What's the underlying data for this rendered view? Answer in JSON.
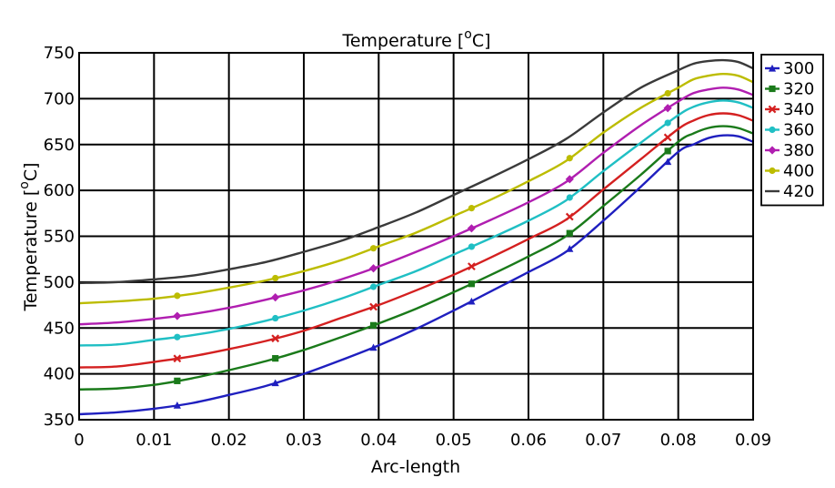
{
  "chart_data": {
    "type": "line",
    "title_main": "Temperature [",
    "title_sup": "o",
    "title_end": "C]",
    "xlabel": "Arc-length",
    "ylabel_main": "Temperature [",
    "ylabel_sup": "o",
    "ylabel_end": "C]",
    "xlim": [
      0,
      0.09
    ],
    "ylim": [
      350,
      750
    ],
    "grid": true,
    "legend_position": "right",
    "x_ticks": [
      "0",
      "0.01",
      "0.02",
      "0.03",
      "0.04",
      "0.05",
      "0.06",
      "0.07",
      "0.08",
      "0.09"
    ],
    "y_ticks": [
      "350",
      "400",
      "450",
      "500",
      "550",
      "600",
      "650",
      "700",
      "750"
    ],
    "marker_x": [
      0.0131,
      0.0262,
      0.0393,
      0.0524,
      0.0655,
      0.0786
    ],
    "x": [
      0,
      0.005,
      0.01,
      0.015,
      0.02,
      0.025,
      0.03,
      0.035,
      0.04,
      0.045,
      0.05,
      0.055,
      0.06,
      0.065,
      0.07,
      0.075,
      0.08,
      0.082,
      0.084,
      0.086,
      0.088,
      0.09
    ],
    "series": [
      {
        "name": "300",
        "color": "#1f1fbf",
        "marker": "triangle",
        "values": [
          356,
          358,
          362,
          368,
          377,
          387,
          400,
          415,
          431,
          449,
          469,
          490,
          511,
          533,
          567,
          604,
          642,
          650,
          657,
          660,
          659,
          653
        ]
      },
      {
        "name": "320",
        "color": "#1a7a1a",
        "marker": "square",
        "values": [
          383,
          384,
          388,
          395,
          404,
          414,
          426,
          440,
          455,
          471,
          489,
          508,
          528,
          550,
          583,
          617,
          653,
          662,
          668,
          670,
          668,
          662
        ]
      },
      {
        "name": "340",
        "color": "#d42020",
        "marker": "cross",
        "values": [
          407,
          408,
          413,
          419,
          427,
          436,
          447,
          461,
          475,
          491,
          508,
          527,
          547,
          568,
          601,
          634,
          667,
          676,
          682,
          684,
          682,
          676
        ]
      },
      {
        "name": "360",
        "color": "#20bfc4",
        "marker": "circle",
        "values": [
          431,
          432,
          437,
          442,
          449,
          458,
          469,
          482,
          497,
          512,
          530,
          548,
          567,
          589,
          621,
          652,
          682,
          691,
          696,
          698,
          696,
          690
        ]
      },
      {
        "name": "380",
        "color": "#b01eb0",
        "marker": "diamond",
        "values": [
          454,
          456,
          460,
          465,
          472,
          481,
          491,
          503,
          517,
          533,
          550,
          568,
          587,
          609,
          641,
          671,
          697,
          706,
          710,
          712,
          710,
          704
        ]
      },
      {
        "name": "400",
        "color": "#bcbc00",
        "marker": "circle",
        "values": [
          477,
          479,
          482,
          487,
          494,
          502,
          512,
          524,
          539,
          554,
          572,
          590,
          610,
          632,
          663,
          690,
          712,
          721,
          725,
          727,
          725,
          718
        ]
      },
      {
        "name": "420",
        "color": "#3a3a3a",
        "marker": "none",
        "values": [
          499,
          500,
          503,
          507,
          514,
          522,
          533,
          545,
          560,
          576,
          595,
          614,
          634,
          656,
          685,
          712,
          731,
          738,
          741,
          742,
          740,
          733
        ]
      }
    ]
  }
}
